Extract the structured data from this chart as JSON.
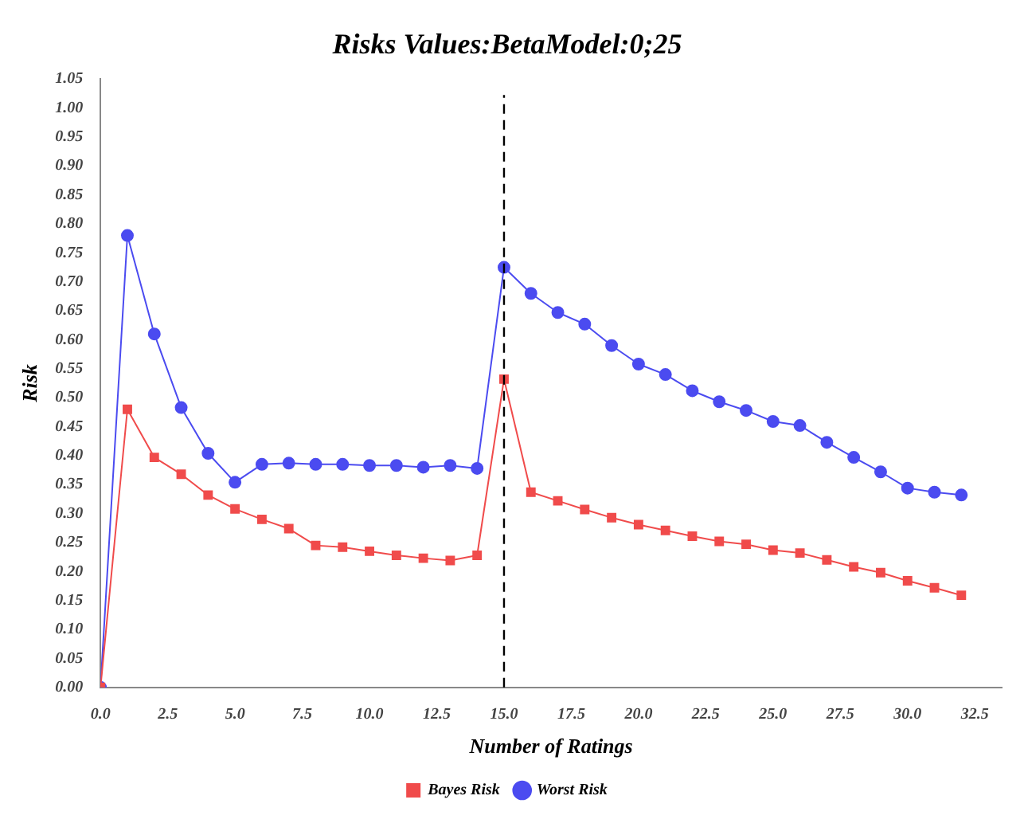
{
  "chart_data": {
    "type": "line",
    "title": "Risks Values:BetaModel:0;25",
    "xlabel": "Number of Ratings",
    "ylabel": "Risk",
    "x": [
      0,
      1,
      2,
      3,
      4,
      5,
      6,
      7,
      8,
      9,
      10,
      11,
      12,
      13,
      14,
      15,
      16,
      17,
      18,
      19,
      20,
      21,
      22,
      23,
      24,
      25,
      26,
      27,
      28,
      29,
      30,
      31,
      32
    ],
    "series": [
      {
        "name": "Bayes Risk",
        "color": "#f04b4b",
        "marker": "square",
        "values": [
          0,
          0.48,
          0.397,
          0.368,
          0.332,
          0.308,
          0.29,
          0.274,
          0.245,
          0.242,
          0.235,
          0.228,
          0.223,
          0.219,
          0.228,
          0.532,
          0.337,
          0.322,
          0.307,
          0.293,
          0.281,
          0.271,
          0.261,
          0.252,
          0.247,
          0.237,
          0.232,
          0.22,
          0.208,
          0.198,
          0.184,
          0.172,
          0.159
        ]
      },
      {
        "name": "Worst Risk",
        "color": "#4b4bf0",
        "marker": "circle",
        "values": [
          0,
          0.78,
          0.61,
          0.483,
          0.404,
          0.354,
          0.385,
          0.387,
          0.385,
          0.385,
          0.383,
          0.383,
          0.38,
          0.383,
          0.378,
          0.725,
          0.68,
          0.647,
          0.627,
          0.59,
          0.558,
          0.54,
          0.512,
          0.493,
          0.478,
          0.459,
          0.452,
          0.423,
          0.397,
          0.372,
          0.344,
          0.337,
          0.332
        ]
      }
    ],
    "xlim": [
      0,
      33.5
    ],
    "xticks": [
      {
        "value": 0,
        "label": "0.0"
      },
      {
        "value": 2.5,
        "label": "2.5"
      },
      {
        "value": 5,
        "label": "5.0"
      },
      {
        "value": 7.5,
        "label": "7.5"
      },
      {
        "value": 10,
        "label": "10.0"
      },
      {
        "value": 12.5,
        "label": "12.5"
      },
      {
        "value": 15,
        "label": "15.0"
      },
      {
        "value": 17.5,
        "label": "17.5"
      },
      {
        "value": 20,
        "label": "20.0"
      },
      {
        "value": 22.5,
        "label": "22.5"
      },
      {
        "value": 25,
        "label": "25.0"
      },
      {
        "value": 27.5,
        "label": "27.5"
      },
      {
        "value": 30,
        "label": "30.0"
      },
      {
        "value": 32.5,
        "label": "32.5"
      }
    ],
    "ylim": [
      0,
      1.05
    ],
    "yticks": [
      {
        "value": 0,
        "label": "0.00"
      },
      {
        "value": 0.05,
        "label": "0.05"
      },
      {
        "value": 0.1,
        "label": "0.10"
      },
      {
        "value": 0.15,
        "label": "0.15"
      },
      {
        "value": 0.2,
        "label": "0.20"
      },
      {
        "value": 0.25,
        "label": "0.25"
      },
      {
        "value": 0.3,
        "label": "0.30"
      },
      {
        "value": 0.35,
        "label": "0.35"
      },
      {
        "value": 0.4,
        "label": "0.40"
      },
      {
        "value": 0.45,
        "label": "0.45"
      },
      {
        "value": 0.5,
        "label": "0.50"
      },
      {
        "value": 0.55,
        "label": "0.55"
      },
      {
        "value": 0.6,
        "label": "0.60"
      },
      {
        "value": 0.65,
        "label": "0.65"
      },
      {
        "value": 0.7,
        "label": "0.70"
      },
      {
        "value": 0.75,
        "label": "0.75"
      },
      {
        "value": 0.8,
        "label": "0.80"
      },
      {
        "value": 0.85,
        "label": "0.85"
      },
      {
        "value": 0.9,
        "label": "0.90"
      },
      {
        "value": 0.95,
        "label": "0.95"
      },
      {
        "value": 1,
        "label": "1.00"
      },
      {
        "value": 1.05,
        "label": "1.05"
      }
    ],
    "ref_lines": [
      {
        "axis": "x",
        "value": 15,
        "color": "#000000",
        "line_style": "dashed"
      }
    ],
    "grid": false,
    "legend": "bottom"
  }
}
